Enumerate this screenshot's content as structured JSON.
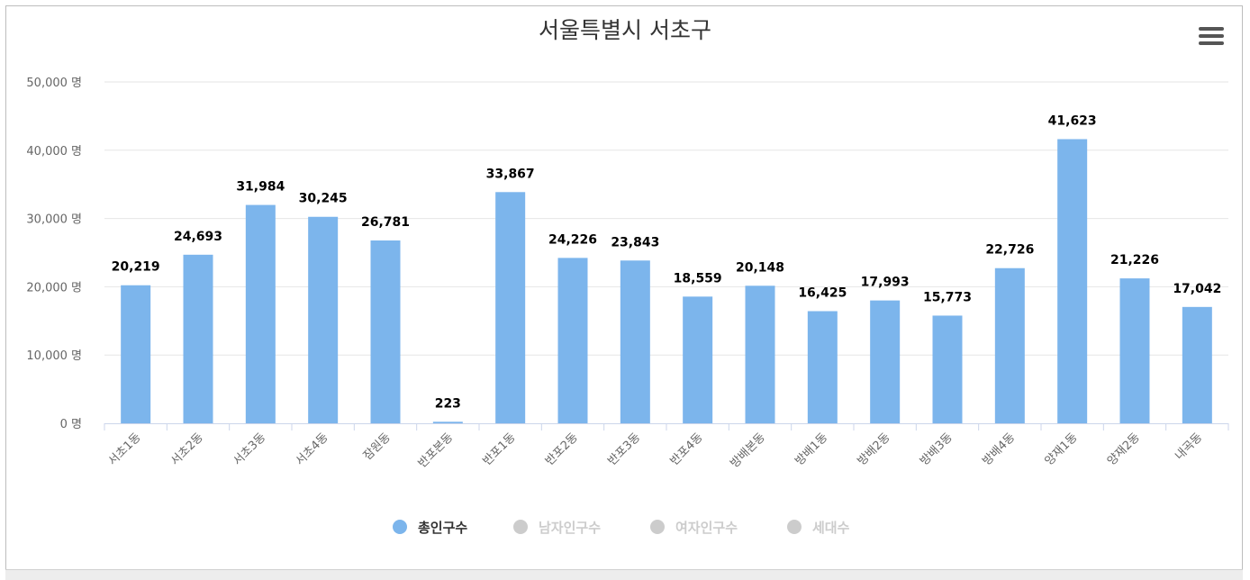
{
  "chart_data": {
    "type": "bar",
    "title": "서울특별시 서초구",
    "categories": [
      "서초1동",
      "서초2동",
      "서초3동",
      "서초4동",
      "잠원동",
      "반포본동",
      "반포1동",
      "반포2동",
      "반포3동",
      "반포4동",
      "방배본동",
      "방배1동",
      "방배2동",
      "방배3동",
      "방배4동",
      "양재1동",
      "양재2동",
      "내곡동"
    ],
    "series": [
      {
        "name": "총인구수",
        "visible": true,
        "color": "#7cb5ec",
        "values": [
          20219,
          24693,
          31984,
          30245,
          26781,
          223,
          33867,
          24226,
          23843,
          18559,
          20148,
          16425,
          17993,
          15773,
          22726,
          41623,
          21226,
          17042
        ],
        "labels": [
          "20,219",
          "24,693",
          "31,984",
          "30,245",
          "26,781",
          "223",
          "33,867",
          "24,226",
          "23,843",
          "18,559",
          "20,148",
          "16,425",
          "17,993",
          "15,773",
          "22,726",
          "41,623",
          "21,226",
          "17,042"
        ]
      },
      {
        "name": "남자인구수",
        "visible": false,
        "color": "#cccccc"
      },
      {
        "name": "여자인구수",
        "visible": false,
        "color": "#cccccc"
      },
      {
        "name": "세대수",
        "visible": false,
        "color": "#cccccc"
      }
    ],
    "ylim": [
      0,
      50000
    ],
    "ytick_labels": [
      "0 명",
      "10,000 명",
      "20,000 명",
      "30,000 명",
      "40,000 명",
      "50,000 명"
    ],
    "ytick_values": [
      0,
      10000,
      20000,
      30000,
      40000,
      50000
    ],
    "grid": true,
    "legend_position": "bottom-center"
  },
  "colors": {
    "bar": "#7cb5ec",
    "legend_active_text": "#333333",
    "legend_inactive": "#cccccc"
  },
  "menu": {
    "icon": "hamburger-menu-icon"
  }
}
